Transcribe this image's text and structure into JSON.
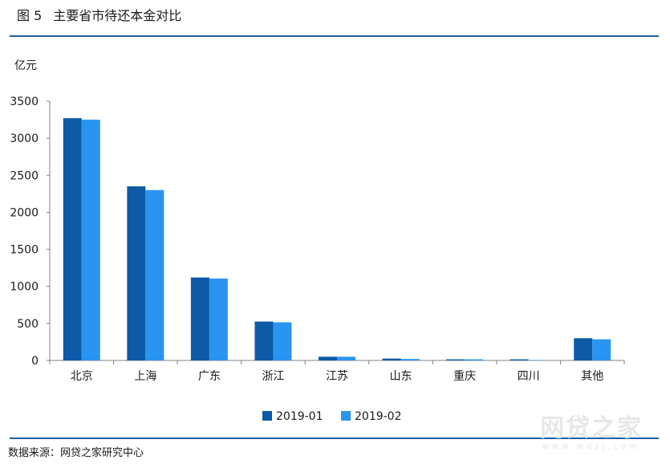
{
  "header": {
    "figure_number": "图 5",
    "title": "主要省市待还本金对比"
  },
  "footer": {
    "source": "数据来源：网贷之家研究中心"
  },
  "watermark": {
    "main": "网贷之家",
    "sub": "www.wdzj.com"
  },
  "colors": {
    "rule": "#1f5ea8",
    "series_2019_01": "#0d5aa7",
    "series_2019_02": "#2a95f0"
  },
  "chart_data": {
    "type": "bar",
    "title": "主要省市待还本金对比",
    "ylabel": "亿元",
    "xlabel": "",
    "ylim": [
      0,
      3500
    ],
    "yticks": [
      0,
      500,
      1000,
      1500,
      2000,
      2500,
      3000,
      3500
    ],
    "grid": false,
    "legend_position": "bottom",
    "categories": [
      "北京",
      "上海",
      "广东",
      "浙江",
      "江苏",
      "山东",
      "重庆",
      "四川",
      "其他"
    ],
    "series": [
      {
        "name": "2019-01",
        "color": "#0d5aa7",
        "values": [
          3270,
          2350,
          1120,
          525,
          50,
          25,
          15,
          15,
          300
        ]
      },
      {
        "name": "2019-02",
        "color": "#2a95f0",
        "values": [
          3250,
          2300,
          1105,
          515,
          50,
          20,
          15,
          5,
          285
        ]
      }
    ]
  }
}
